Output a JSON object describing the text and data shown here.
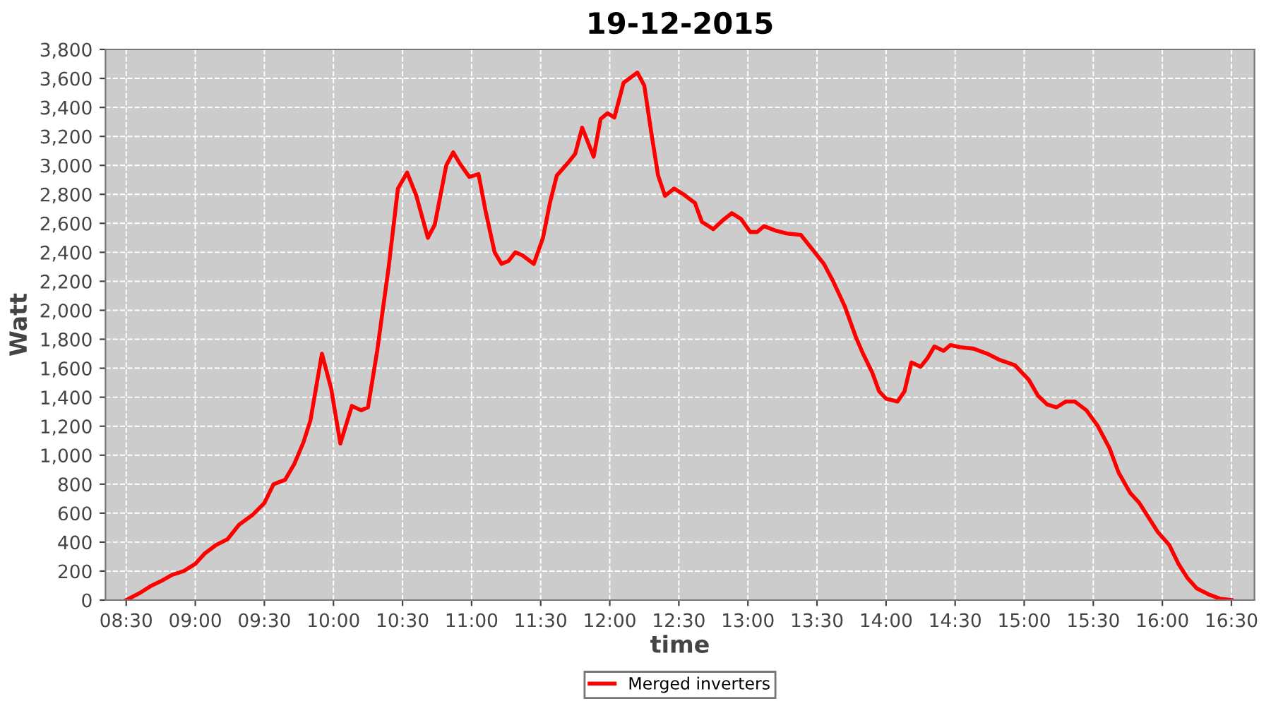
{
  "chart_data": {
    "type": "line",
    "title": "19-12-2015",
    "xlabel": "time",
    "ylabel": "Watt",
    "x": [
      "2015-12-19T08:30",
      "2015-12-19T08:36",
      "2015-12-19T08:41",
      "2015-12-19T08:45",
      "2015-12-19T08:50",
      "2015-12-19T08:55",
      "2015-12-19T09:00",
      "2015-12-19T09:04",
      "2015-12-19T09:09",
      "2015-12-19T09:14",
      "2015-12-19T09:19",
      "2015-12-19T09:25",
      "2015-12-19T09:30",
      "2015-12-19T09:34",
      "2015-12-19T09:39",
      "2015-12-19T09:43",
      "2015-12-19T09:47",
      "2015-12-19T09:50",
      "2015-12-19T09:55",
      "2015-12-19T09:59",
      "2015-12-19T10:03",
      "2015-12-19T10:08",
      "2015-12-19T10:12",
      "2015-12-19T10:15",
      "2015-12-19T10:19",
      "2015-12-19T10:24",
      "2015-12-19T10:28",
      "2015-12-19T10:32",
      "2015-12-19T10:36",
      "2015-12-19T10:41",
      "2015-12-19T10:44",
      "2015-12-19T10:49",
      "2015-12-19T10:52",
      "2015-12-19T10:55",
      "2015-12-19T10:59",
      "2015-12-19T11:03",
      "2015-12-19T11:06",
      "2015-12-19T11:10",
      "2015-12-19T11:13",
      "2015-12-19T11:16",
      "2015-12-19T11:19",
      "2015-12-19T11:22",
      "2015-12-19T11:27",
      "2015-12-19T11:31",
      "2015-12-19T11:34",
      "2015-12-19T11:37",
      "2015-12-19T11:42",
      "2015-12-19T11:45",
      "2015-12-19T11:48",
      "2015-12-19T11:53",
      "2015-12-19T11:56",
      "2015-12-19T11:59",
      "2015-12-19T12:02",
      "2015-12-19T12:06",
      "2015-12-19T12:12",
      "2015-12-19T12:15",
      "2015-12-19T12:18",
      "2015-12-19T12:21",
      "2015-12-19T12:24",
      "2015-12-19T12:28",
      "2015-12-19T12:32",
      "2015-12-19T12:37",
      "2015-12-19T12:40",
      "2015-12-19T12:45",
      "2015-12-19T12:49",
      "2015-12-19T12:53",
      "2015-12-19T12:57",
      "2015-12-19T13:01",
      "2015-12-19T13:04",
      "2015-12-19T13:07",
      "2015-12-19T13:12",
      "2015-12-19T13:17",
      "2015-12-19T13:23",
      "2015-12-19T13:28",
      "2015-12-19T13:33",
      "2015-12-19T13:37",
      "2015-12-19T13:42",
      "2015-12-19T13:47",
      "2015-12-19T13:50",
      "2015-12-19T13:54",
      "2015-12-19T13:57",
      "2015-12-19T14:00",
      "2015-12-19T14:05",
      "2015-12-19T14:08",
      "2015-12-19T14:11",
      "2015-12-19T14:15",
      "2015-12-19T14:18",
      "2015-12-19T14:21",
      "2015-12-19T14:25",
      "2015-12-19T14:28",
      "2015-12-19T14:32",
      "2015-12-19T14:38",
      "2015-12-19T14:44",
      "2015-12-19T14:49",
      "2015-12-19T14:56",
      "2015-12-19T15:02",
      "2015-12-19T15:06",
      "2015-12-19T15:10",
      "2015-12-19T15:14",
      "2015-12-19T15:18",
      "2015-12-19T15:22",
      "2015-12-19T15:27",
      "2015-12-19T15:32",
      "2015-12-19T15:37",
      "2015-12-19T15:41",
      "2015-12-19T15:46",
      "2015-12-19T15:50",
      "2015-12-19T15:54",
      "2015-12-19T15:58",
      "2015-12-19T16:03",
      "2015-12-19T16:07",
      "2015-12-19T16:11",
      "2015-12-19T16:15",
      "2015-12-19T16:20",
      "2015-12-19T16:25",
      "2015-12-19T16:30"
    ],
    "series": [
      {
        "name": "Merged inverters",
        "color": "#ff0000",
        "values": [
          0,
          50,
          100,
          130,
          175,
          200,
          250,
          320,
          380,
          420,
          520,
          590,
          670,
          800,
          830,
          940,
          1090,
          1240,
          1700,
          1460,
          1080,
          1340,
          1310,
          1330,
          1720,
          2300,
          2840,
          2950,
          2790,
          2500,
          2590,
          3000,
          3090,
          3010,
          2920,
          2940,
          2690,
          2400,
          2320,
          2340,
          2400,
          2380,
          2320,
          2500,
          2740,
          2930,
          3020,
          3080,
          3260,
          3060,
          3320,
          3360,
          3330,
          3570,
          3640,
          3550,
          3230,
          2930,
          2790,
          2840,
          2800,
          2740,
          2610,
          2560,
          2620,
          2670,
          2630,
          2540,
          2540,
          2580,
          2550,
          2530,
          2520,
          2420,
          2320,
          2200,
          2030,
          1810,
          1700,
          1570,
          1440,
          1390,
          1370,
          1440,
          1640,
          1610,
          1670,
          1750,
          1720,
          1760,
          1745,
          1735,
          1700,
          1660,
          1620,
          1520,
          1410,
          1350,
          1330,
          1370,
          1370,
          1310,
          1200,
          1050,
          880,
          740,
          670,
          570,
          470,
          380,
          250,
          150,
          80,
          40,
          10,
          0
        ]
      }
    ],
    "xlim": [
      "2015-12-19T08:21",
      "2015-12-19T16:40"
    ],
    "xticks": [
      {
        "value": "2015-12-19T08:30",
        "label": "08:30"
      },
      {
        "value": "2015-12-19T09:00",
        "label": "09:00"
      },
      {
        "value": "2015-12-19T09:30",
        "label": "09:30"
      },
      {
        "value": "2015-12-19T10:00",
        "label": "10:00"
      },
      {
        "value": "2015-12-19T10:30",
        "label": "10:30"
      },
      {
        "value": "2015-12-19T11:00",
        "label": "11:00"
      },
      {
        "value": "2015-12-19T11:30",
        "label": "11:30"
      },
      {
        "value": "2015-12-19T12:00",
        "label": "12:00"
      },
      {
        "value": "2015-12-19T12:30",
        "label": "12:30"
      },
      {
        "value": "2015-12-19T13:00",
        "label": "13:00"
      },
      {
        "value": "2015-12-19T13:30",
        "label": "13:30"
      },
      {
        "value": "2015-12-19T14:00",
        "label": "14:00"
      },
      {
        "value": "2015-12-19T14:30",
        "label": "14:30"
      },
      {
        "value": "2015-12-19T15:00",
        "label": "15:00"
      },
      {
        "value": "2015-12-19T15:30",
        "label": "15:30"
      },
      {
        "value": "2015-12-19T16:00",
        "label": "16:00"
      },
      {
        "value": "2015-12-19T16:30",
        "label": "16:30"
      }
    ],
    "ylim": [
      0,
      3800
    ],
    "yticks": [
      {
        "value": 0,
        "label": "0"
      },
      {
        "value": 200,
        "label": "200"
      },
      {
        "value": 400,
        "label": "400"
      },
      {
        "value": 600,
        "label": "600"
      },
      {
        "value": 800,
        "label": "800"
      },
      {
        "value": 1000,
        "label": "1,000"
      },
      {
        "value": 1200,
        "label": "1,200"
      },
      {
        "value": 1400,
        "label": "1,400"
      },
      {
        "value": 1600,
        "label": "1,600"
      },
      {
        "value": 1800,
        "label": "1,800"
      },
      {
        "value": 2000,
        "label": "2,000"
      },
      {
        "value": 2200,
        "label": "2,200"
      },
      {
        "value": 2400,
        "label": "2,400"
      },
      {
        "value": 2600,
        "label": "2,600"
      },
      {
        "value": 2800,
        "label": "2,800"
      },
      {
        "value": 3000,
        "label": "3,000"
      },
      {
        "value": 3200,
        "label": "3,200"
      },
      {
        "value": 3400,
        "label": "3,400"
      },
      {
        "value": 3600,
        "label": "3,600"
      },
      {
        "value": 3800,
        "label": "3,800"
      }
    ],
    "grid": true,
    "legend": "bottom",
    "marker": "none",
    "line_style": "solid"
  }
}
